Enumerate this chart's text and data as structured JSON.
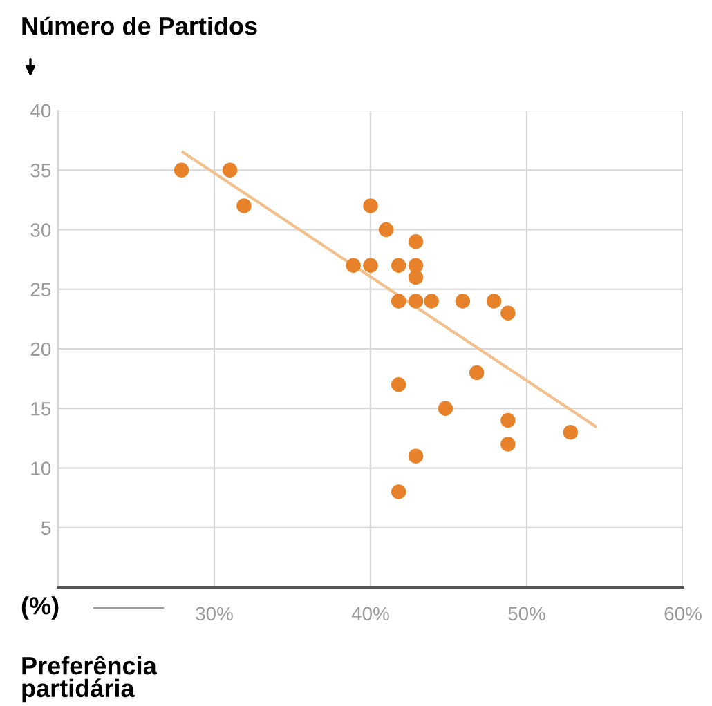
{
  "chart_data": {
    "type": "scatter",
    "ylabel": "Número de Partidos",
    "xlabel": "Preferência\npartidária",
    "annotations": [
      "(%)"
    ],
    "xlim": [
      20,
      60
    ],
    "xticks": [
      {
        "value": 30,
        "label": "30%"
      },
      {
        "value": 40,
        "label": "40%"
      },
      {
        "value": 50,
        "label": "50%"
      },
      {
        "value": 60,
        "label": "60%"
      }
    ],
    "ylim": [
      0,
      40
    ],
    "yticks": [
      5,
      10,
      15,
      20,
      25,
      30,
      35,
      40
    ],
    "grid": true,
    "series": [
      {
        "color": "#e8822a",
        "marker": "circle",
        "x": [
          27.9,
          31.0,
          31.9,
          38.9,
          40.0,
          40.0,
          41.0,
          41.8,
          42.9,
          42.9,
          42.9,
          41.8,
          42.9,
          43.9,
          45.9,
          47.9,
          48.8,
          41.8,
          44.8,
          46.8,
          48.8,
          48.8,
          52.8,
          42.9,
          41.8
        ],
        "values": [
          35,
          35,
          32,
          27,
          27,
          32,
          30,
          27,
          29,
          27,
          26,
          24,
          24,
          24,
          24,
          24,
          23,
          17,
          15,
          18,
          14,
          12,
          13,
          11,
          8
        ]
      },
      {
        "type": "line",
        "color": "#f2c08c",
        "x": [
          28,
          54.4
        ],
        "values": [
          36.5,
          13.5
        ]
      }
    ]
  }
}
